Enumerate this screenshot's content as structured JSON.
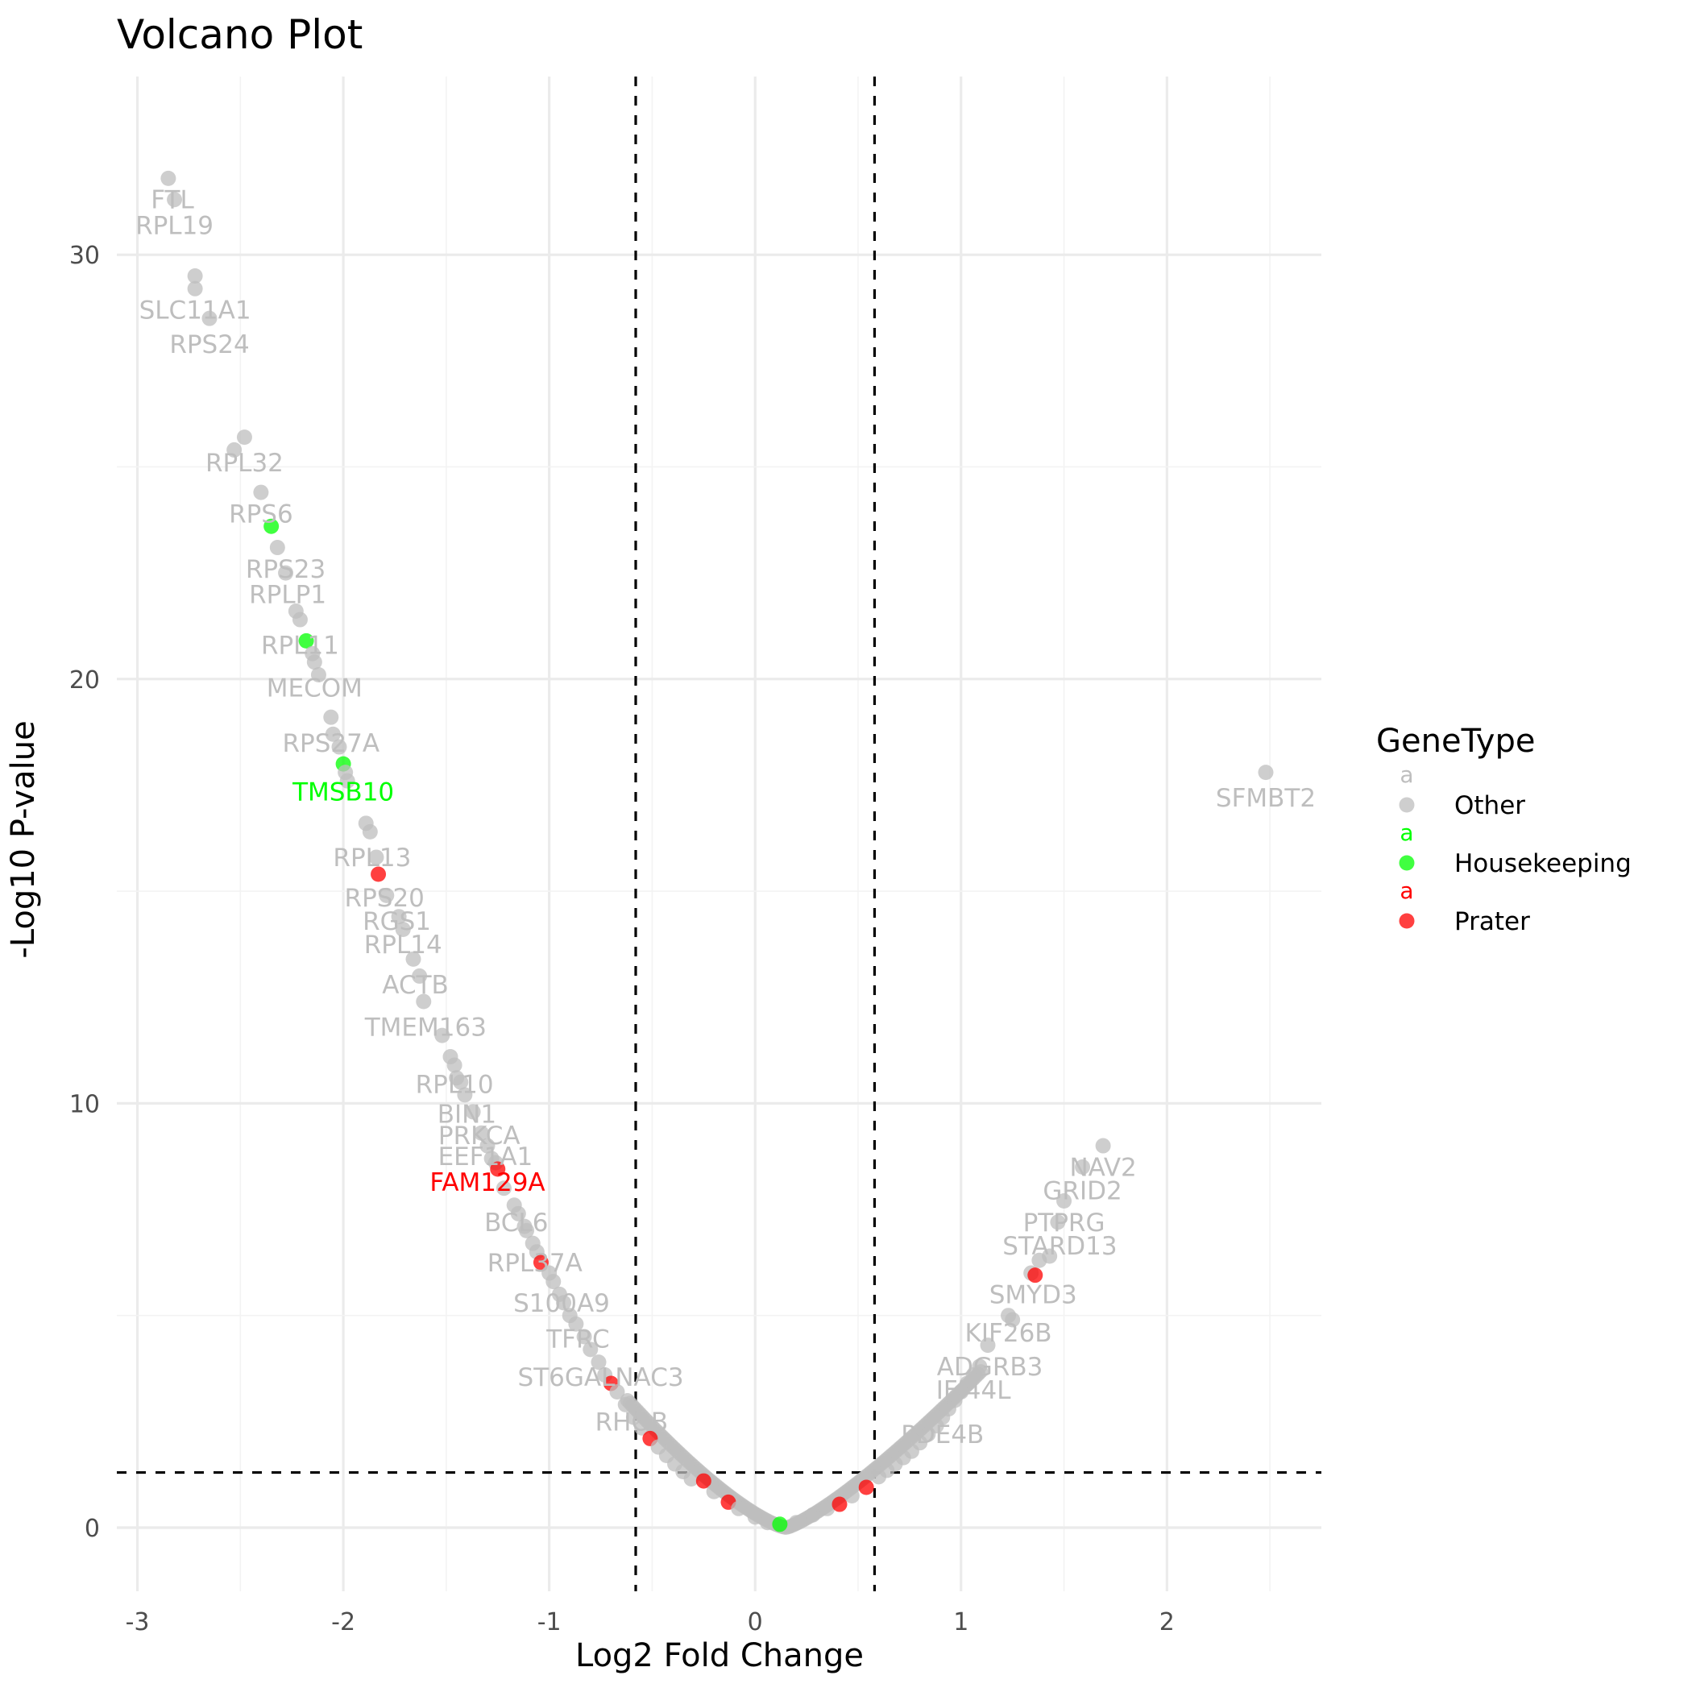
{
  "chart_data": {
    "type": "scatter",
    "title": "Volcano Plot",
    "xlabel": "Log2 Fold Change",
    "ylabel": "-Log10 P-value",
    "xlim": [
      -3.1,
      2.75
    ],
    "ylim": [
      -1.5,
      34.2
    ],
    "x_ticks": [
      -3,
      -2,
      -1,
      0,
      1,
      2
    ],
    "y_ticks": [
      0,
      10,
      20,
      30
    ],
    "x_tick_labels": [
      "-3",
      "-2",
      "-1",
      "0",
      "1",
      "2"
    ],
    "y_tick_labels": [
      "0",
      "10",
      "20",
      "30"
    ],
    "grid": true,
    "threshold_lines": {
      "vertical": [
        -0.58,
        0.58
      ],
      "horizontal": [
        1.3
      ]
    },
    "legend": {
      "title": "GeneType",
      "position": "right",
      "key_glyph": "a",
      "entries": [
        {
          "name": "Other",
          "color": "#bebebe"
        },
        {
          "name": "Housekeeping",
          "color": "#00ff00"
        },
        {
          "name": "Prater",
          "color": "#ff0000"
        }
      ]
    },
    "colors": {
      "Other": "#bebebe",
      "Housekeeping": "#00ff00",
      "Prater": "#ff0000"
    },
    "points": [
      {
        "x": -2.85,
        "y": 31.8,
        "type": "Other"
      },
      {
        "x": -2.82,
        "y": 31.3,
        "type": "Other"
      },
      {
        "x": -2.72,
        "y": 29.5,
        "type": "Other"
      },
      {
        "x": -2.72,
        "y": 29.2,
        "type": "Other"
      },
      {
        "x": -2.65,
        "y": 28.5,
        "type": "Other"
      },
      {
        "x": -2.48,
        "y": 25.7,
        "type": "Other"
      },
      {
        "x": -2.53,
        "y": 25.4,
        "type": "Other"
      },
      {
        "x": -2.4,
        "y": 24.4,
        "type": "Other"
      },
      {
        "x": -2.35,
        "y": 23.6,
        "type": "Housekeeping"
      },
      {
        "x": -2.32,
        "y": 23.1,
        "type": "Other"
      },
      {
        "x": -2.28,
        "y": 22.5,
        "type": "Other"
      },
      {
        "x": -2.23,
        "y": 21.6,
        "type": "Other"
      },
      {
        "x": -2.21,
        "y": 21.4,
        "type": "Other"
      },
      {
        "x": -2.18,
        "y": 20.9,
        "type": "Housekeeping"
      },
      {
        "x": -2.15,
        "y": 20.6,
        "type": "Other"
      },
      {
        "x": -2.14,
        "y": 20.4,
        "type": "Other"
      },
      {
        "x": -2.12,
        "y": 20.1,
        "type": "Other"
      },
      {
        "x": -2.06,
        "y": 19.1,
        "type": "Other"
      },
      {
        "x": -2.05,
        "y": 18.7,
        "type": "Other"
      },
      {
        "x": -2.02,
        "y": 18.4,
        "type": "Other"
      },
      {
        "x": -2.0,
        "y": 18.0,
        "type": "Housekeeping"
      },
      {
        "x": -1.99,
        "y": 17.8,
        "type": "Other"
      },
      {
        "x": -1.98,
        "y": 17.6,
        "type": "Other"
      },
      {
        "x": -1.89,
        "y": 16.6,
        "type": "Other"
      },
      {
        "x": -1.87,
        "y": 16.4,
        "type": "Other"
      },
      {
        "x": -1.84,
        "y": 15.8,
        "type": "Other"
      },
      {
        "x": -1.83,
        "y": 15.4,
        "type": "Prater"
      },
      {
        "x": -1.79,
        "y": 14.9,
        "type": "Other"
      },
      {
        "x": -1.73,
        "y": 14.4,
        "type": "Other"
      },
      {
        "x": -1.71,
        "y": 14.1,
        "type": "Other"
      },
      {
        "x": -1.66,
        "y": 13.4,
        "type": "Other"
      },
      {
        "x": -1.63,
        "y": 13.0,
        "type": "Other"
      },
      {
        "x": -1.61,
        "y": 12.4,
        "type": "Other"
      },
      {
        "x": -1.52,
        "y": 11.6,
        "type": "Other"
      },
      {
        "x": -1.48,
        "y": 11.1,
        "type": "Other"
      },
      {
        "x": -1.46,
        "y": 10.9,
        "type": "Other"
      },
      {
        "x": -1.45,
        "y": 10.6,
        "type": "Other"
      },
      {
        "x": -1.43,
        "y": 10.5,
        "type": "Other"
      },
      {
        "x": -1.41,
        "y": 10.2,
        "type": "Other"
      },
      {
        "x": -1.37,
        "y": 9.8,
        "type": "Other"
      },
      {
        "x": -1.33,
        "y": 9.3,
        "type": "Other"
      },
      {
        "x": -1.3,
        "y": 9.0,
        "type": "Other"
      },
      {
        "x": -1.28,
        "y": 8.7,
        "type": "Other"
      },
      {
        "x": -1.26,
        "y": 8.6,
        "type": "Other"
      },
      {
        "x": -1.25,
        "y": 8.45,
        "type": "Prater"
      },
      {
        "x": -1.22,
        "y": 8.0,
        "type": "Other"
      },
      {
        "x": -1.17,
        "y": 7.6,
        "type": "Other"
      },
      {
        "x": -1.15,
        "y": 7.4,
        "type": "Other"
      },
      {
        "x": -1.12,
        "y": 7.1,
        "type": "Other"
      },
      {
        "x": -1.11,
        "y": 7.0,
        "type": "Other"
      },
      {
        "x": -1.08,
        "y": 6.7,
        "type": "Other"
      },
      {
        "x": -1.06,
        "y": 6.5,
        "type": "Other"
      },
      {
        "x": -1.04,
        "y": 6.25,
        "type": "Prater"
      },
      {
        "x": -1.0,
        "y": 6.0,
        "type": "Other"
      },
      {
        "x": -0.98,
        "y": 5.8,
        "type": "Other"
      },
      {
        "x": -0.95,
        "y": 5.5,
        "type": "Other"
      },
      {
        "x": -0.93,
        "y": 5.3,
        "type": "Other"
      },
      {
        "x": -0.9,
        "y": 5.0,
        "type": "Other"
      },
      {
        "x": -0.87,
        "y": 4.8,
        "type": "Other"
      },
      {
        "x": -0.83,
        "y": 4.5,
        "type": "Other"
      },
      {
        "x": -0.8,
        "y": 4.2,
        "type": "Other"
      },
      {
        "x": -0.76,
        "y": 3.9,
        "type": "Other"
      },
      {
        "x": -0.73,
        "y": 3.6,
        "type": "Other"
      },
      {
        "x": -0.7,
        "y": 3.4,
        "type": "Prater"
      },
      {
        "x": -0.67,
        "y": 3.2,
        "type": "Other"
      },
      {
        "x": -0.63,
        "y": 2.9,
        "type": "Other"
      },
      {
        "x": -0.59,
        "y": 2.6,
        "type": "Other"
      },
      {
        "x": -0.55,
        "y": 2.35,
        "type": "Other"
      },
      {
        "x": -0.51,
        "y": 2.1,
        "type": "Prater"
      },
      {
        "x": -0.47,
        "y": 1.9,
        "type": "Other"
      },
      {
        "x": -0.43,
        "y": 1.7,
        "type": "Other"
      },
      {
        "x": -0.39,
        "y": 1.5,
        "type": "Other"
      },
      {
        "x": -0.35,
        "y": 1.32,
        "type": "Other"
      },
      {
        "x": -0.31,
        "y": 1.15,
        "type": "Other"
      },
      {
        "x": -0.25,
        "y": 1.1,
        "type": "Prater"
      },
      {
        "x": -0.2,
        "y": 0.85,
        "type": "Other"
      },
      {
        "x": -0.13,
        "y": 0.6,
        "type": "Prater"
      },
      {
        "x": -0.08,
        "y": 0.45,
        "type": "Other"
      },
      {
        "x": 0.0,
        "y": 0.25,
        "type": "Other"
      },
      {
        "x": 0.06,
        "y": 0.12,
        "type": "Other"
      },
      {
        "x": 0.12,
        "y": 0.08,
        "type": "Housekeeping"
      },
      {
        "x": 0.2,
        "y": 0.12,
        "type": "Other"
      },
      {
        "x": 0.28,
        "y": 0.3,
        "type": "Other"
      },
      {
        "x": 0.35,
        "y": 0.45,
        "type": "Other"
      },
      {
        "x": 0.41,
        "y": 0.55,
        "type": "Prater"
      },
      {
        "x": 0.47,
        "y": 0.75,
        "type": "Other"
      },
      {
        "x": 0.54,
        "y": 0.95,
        "type": "Prater"
      },
      {
        "x": 0.6,
        "y": 1.2,
        "type": "Other"
      },
      {
        "x": 0.64,
        "y": 1.35,
        "type": "Other"
      },
      {
        "x": 0.68,
        "y": 1.5,
        "type": "Other"
      },
      {
        "x": 0.72,
        "y": 1.65,
        "type": "Other"
      },
      {
        "x": 0.76,
        "y": 1.8,
        "type": "Other"
      },
      {
        "x": 0.8,
        "y": 2.0,
        "type": "Other"
      },
      {
        "x": 0.84,
        "y": 2.2,
        "type": "Other"
      },
      {
        "x": 0.88,
        "y": 2.4,
        "type": "Other"
      },
      {
        "x": 0.91,
        "y": 2.6,
        "type": "Other"
      },
      {
        "x": 0.94,
        "y": 2.8,
        "type": "Other"
      },
      {
        "x": 0.97,
        "y": 3.0,
        "type": "Other"
      },
      {
        "x": 1.0,
        "y": 3.2,
        "type": "Other"
      },
      {
        "x": 1.03,
        "y": 3.4,
        "type": "Other"
      },
      {
        "x": 1.06,
        "y": 3.6,
        "type": "Other"
      },
      {
        "x": 1.09,
        "y": 3.8,
        "type": "Other"
      },
      {
        "x": 1.13,
        "y": 4.3,
        "type": "Other"
      },
      {
        "x": 1.23,
        "y": 5.0,
        "type": "Other"
      },
      {
        "x": 1.25,
        "y": 4.9,
        "type": "Other"
      },
      {
        "x": 1.34,
        "y": 6.0,
        "type": "Other"
      },
      {
        "x": 1.36,
        "y": 5.95,
        "type": "Prater"
      },
      {
        "x": 1.38,
        "y": 6.3,
        "type": "Other"
      },
      {
        "x": 1.43,
        "y": 6.4,
        "type": "Other"
      },
      {
        "x": 1.47,
        "y": 7.2,
        "type": "Other"
      },
      {
        "x": 1.5,
        "y": 7.7,
        "type": "Other"
      },
      {
        "x": 1.59,
        "y": 8.5,
        "type": "Other"
      },
      {
        "x": 1.69,
        "y": 9.0,
        "type": "Other"
      },
      {
        "x": 2.48,
        "y": 17.8,
        "type": "Other"
      }
    ],
    "annotations": [
      {
        "text": "FTL",
        "x": -2.83,
        "y": 31.3,
        "type": "Other"
      },
      {
        "text": "RPL19",
        "x": -2.82,
        "y": 30.7,
        "type": "Other"
      },
      {
        "text": "SLC11A1",
        "x": -2.72,
        "y": 28.7,
        "type": "Other"
      },
      {
        "text": "RPS24",
        "x": -2.65,
        "y": 27.9,
        "type": "Other"
      },
      {
        "text": "RPL32",
        "x": -2.48,
        "y": 25.1,
        "type": "Other"
      },
      {
        "text": "RPS6",
        "x": -2.4,
        "y": 23.9,
        "type": "Other"
      },
      {
        "text": "RPS23",
        "x": -2.28,
        "y": 22.6,
        "type": "Other"
      },
      {
        "text": "RPLP1",
        "x": -2.27,
        "y": 22.0,
        "type": "Other"
      },
      {
        "text": "RPL11",
        "x": -2.21,
        "y": 20.8,
        "type": "Other"
      },
      {
        "text": "MECOM",
        "x": -2.14,
        "y": 19.8,
        "type": "Other"
      },
      {
        "text": "RPS27A",
        "x": -2.06,
        "y": 18.5,
        "type": "Other"
      },
      {
        "text": "TMSB10",
        "x": -2.0,
        "y": 17.35,
        "type": "Housekeeping"
      },
      {
        "text": "RPL13",
        "x": -1.86,
        "y": 15.8,
        "type": "Other"
      },
      {
        "text": "RPS20",
        "x": -1.8,
        "y": 14.85,
        "type": "Other"
      },
      {
        "text": "RGS1",
        "x": -1.74,
        "y": 14.3,
        "type": "Other"
      },
      {
        "text": "RPL14",
        "x": -1.71,
        "y": 13.75,
        "type": "Other"
      },
      {
        "text": "ACTB",
        "x": -1.65,
        "y": 12.8,
        "type": "Other"
      },
      {
        "text": "TMEM163",
        "x": -1.6,
        "y": 11.8,
        "type": "Other"
      },
      {
        "text": "RPL10",
        "x": -1.46,
        "y": 10.45,
        "type": "Other"
      },
      {
        "text": "BIN1",
        "x": -1.4,
        "y": 9.75,
        "type": "Other"
      },
      {
        "text": "PRKCA",
        "x": -1.34,
        "y": 9.25,
        "type": "Other"
      },
      {
        "text": "EEF1A1",
        "x": -1.31,
        "y": 8.75,
        "type": "Other"
      },
      {
        "text": "FAM129A",
        "x": -1.3,
        "y": 8.15,
        "type": "Prater"
      },
      {
        "text": "BCL6",
        "x": -1.16,
        "y": 7.2,
        "type": "Other"
      },
      {
        "text": "RPL37A",
        "x": -1.07,
        "y": 6.25,
        "type": "Other"
      },
      {
        "text": "S100A9",
        "x": -0.94,
        "y": 5.3,
        "type": "Other"
      },
      {
        "text": "TFRC",
        "x": -0.86,
        "y": 4.45,
        "type": "Other"
      },
      {
        "text": "ST6GALNAC3",
        "x": -0.75,
        "y": 3.55,
        "type": "Other"
      },
      {
        "text": "RHOB",
        "x": -0.6,
        "y": 2.5,
        "type": "Other"
      },
      {
        "text": "NAV2",
        "x": 1.69,
        "y": 8.5,
        "type": "Other"
      },
      {
        "text": "GRID2",
        "x": 1.59,
        "y": 7.95,
        "type": "Other"
      },
      {
        "text": "PTPRG",
        "x": 1.5,
        "y": 7.2,
        "type": "Other"
      },
      {
        "text": "STARD13",
        "x": 1.48,
        "y": 6.65,
        "type": "Other"
      },
      {
        "text": "SMYD3",
        "x": 1.35,
        "y": 5.5,
        "type": "Other"
      },
      {
        "text": "KIF26B",
        "x": 1.23,
        "y": 4.6,
        "type": "Other"
      },
      {
        "text": "ADGRB3",
        "x": 1.14,
        "y": 3.8,
        "type": "Other"
      },
      {
        "text": "IFI44L",
        "x": 1.06,
        "y": 3.25,
        "type": "Other"
      },
      {
        "text": "PDE4B",
        "x": 0.91,
        "y": 2.2,
        "type": "Other"
      },
      {
        "text": "SFMBT2",
        "x": 2.48,
        "y": 17.2,
        "type": "Other"
      }
    ]
  }
}
